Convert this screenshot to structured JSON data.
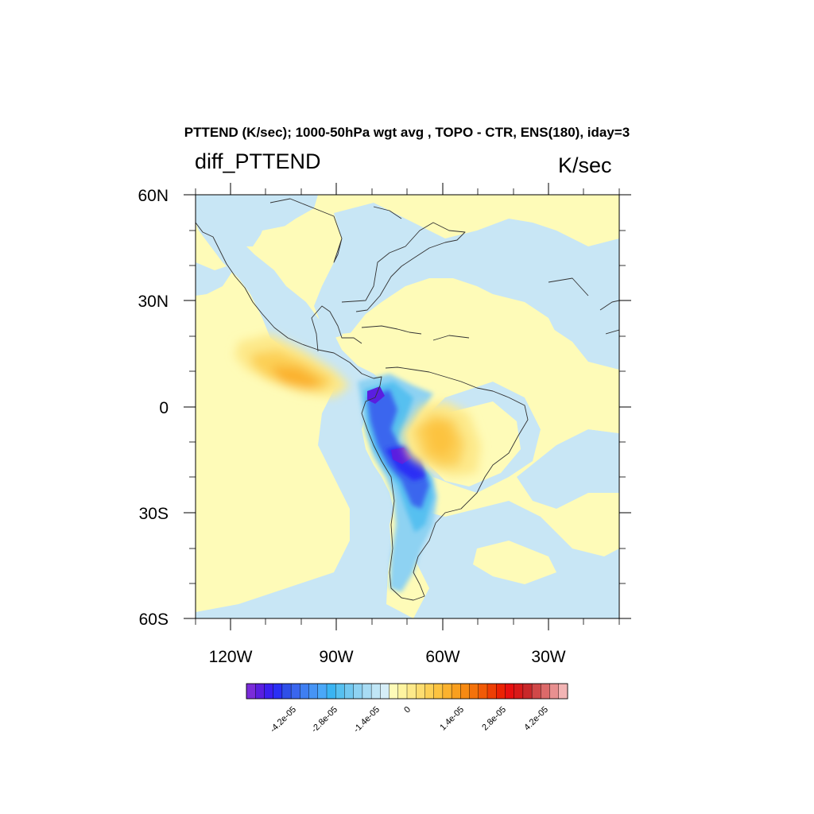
{
  "figure": {
    "title": "PTTEND (K/sec); 1000-50hPa wgt avg , TOPO - CTR, ENS(180), iday=3",
    "left_string": "diff_PTTEND",
    "right_string": "K/sec"
  },
  "map": {
    "lon_range": [
      -130,
      10
    ],
    "lat_range": [
      -60,
      60
    ],
    "lat_ticks": [
      {
        "value": 60,
        "label": "60N"
      },
      {
        "value": 30,
        "label": "30N"
      },
      {
        "value": 0,
        "label": "0"
      },
      {
        "value": -30,
        "label": "30S"
      },
      {
        "value": -60,
        "label": "60S"
      }
    ],
    "lon_ticks": [
      {
        "value": -120,
        "label": "120W"
      },
      {
        "value": -90,
        "label": "90W"
      },
      {
        "value": -60,
        "label": "60W"
      },
      {
        "value": -30,
        "label": "30W"
      }
    ],
    "colors": {
      "background_field": "#fefbb8",
      "weak_negative": "#c8e6f5",
      "ocean_blue_light": "#a8d4f0",
      "coastline": "#333333"
    }
  },
  "colorbar": {
    "labels": [
      "-4.2e-05",
      "-2.8e-05",
      "-1.4e-05",
      "0",
      "1.4e-05",
      "2.8e-05",
      "4.2e-05"
    ],
    "colors": [
      "#7a2bd9",
      "#5a1ee0",
      "#3b1ff0",
      "#2a2ff5",
      "#2f4fe8",
      "#3a66ee",
      "#3f7ff2",
      "#4694f5",
      "#4aa8f8",
      "#3ab4f2",
      "#56c0f0",
      "#72c8f0",
      "#8ed2f2",
      "#a8dcf4",
      "#c0e6f6",
      "#d6eef8",
      "#fefbb8",
      "#fef4a0",
      "#fde98a",
      "#fddd70",
      "#fcd056",
      "#fcc340",
      "#fbb22e",
      "#f99f1e",
      "#f78a12",
      "#f4720a",
      "#f15a06",
      "#ee3f04",
      "#ec2203",
      "#e81010",
      "#d81a1a",
      "#c8282a",
      "#d04848",
      "#dc6a6a",
      "#e89090",
      "#f2b4b4"
    ]
  }
}
